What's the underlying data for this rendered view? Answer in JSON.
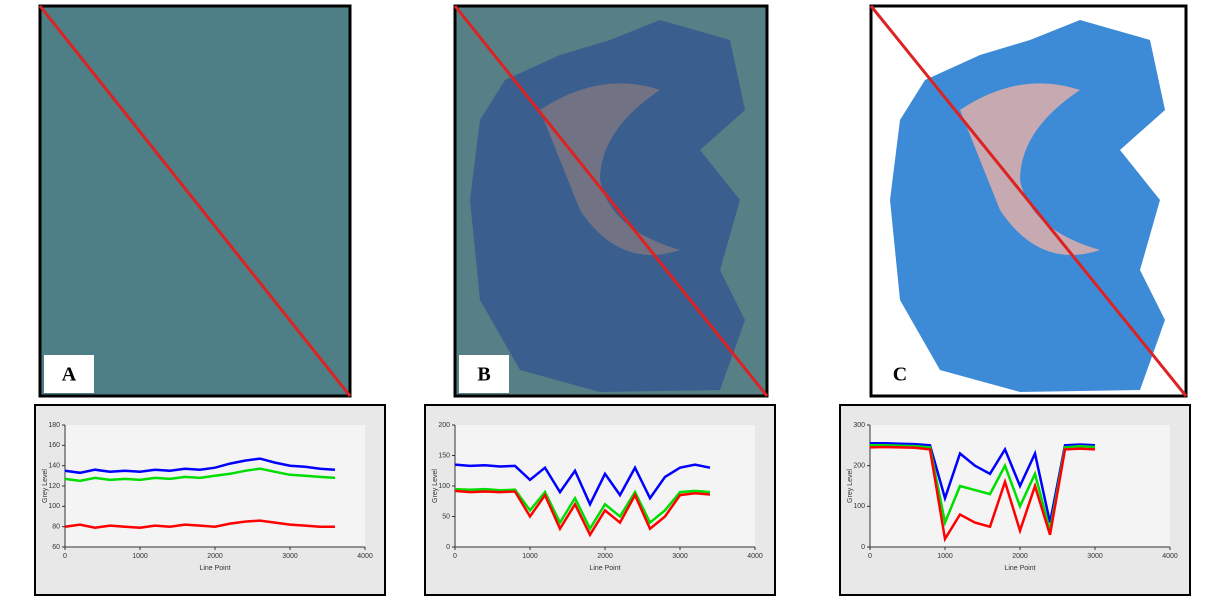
{
  "panels": [
    {
      "label": "A"
    },
    {
      "label": "B"
    },
    {
      "label": "C"
    }
  ],
  "chart_data": [
    {
      "type": "line",
      "x_label": "Line Point",
      "y_label": "Grey Level",
      "x": [
        0,
        200,
        400,
        600,
        800,
        1000,
        1200,
        1400,
        1600,
        1800,
        2000,
        2200,
        2400,
        2600,
        2800,
        3000,
        3200,
        3400,
        3600
      ],
      "xlim": [
        0,
        4000
      ],
      "xticks": [
        0,
        1000,
        2000,
        3000,
        4000
      ],
      "ylim": [
        60,
        180
      ],
      "yticks": [
        60,
        80,
        100,
        120,
        140,
        160,
        180
      ],
      "series": [
        {
          "color": "#0000ff",
          "values": [
            135,
            133,
            136,
            134,
            135,
            134,
            136,
            135,
            137,
            136,
            138,
            142,
            145,
            147,
            143,
            140,
            139,
            137,
            136
          ]
        },
        {
          "color": "#00dd00",
          "values": [
            127,
            125,
            128,
            126,
            127,
            126,
            128,
            127,
            129,
            128,
            130,
            132,
            135,
            137,
            134,
            131,
            130,
            129,
            128
          ]
        },
        {
          "color": "#ff0000",
          "values": [
            80,
            82,
            79,
            81,
            80,
            79,
            81,
            80,
            82,
            81,
            80,
            83,
            85,
            86,
            84,
            82,
            81,
            80,
            80
          ]
        }
      ]
    },
    {
      "type": "line",
      "x_label": "Line Point",
      "y_label": "Grey Level",
      "x": [
        0,
        200,
        400,
        600,
        800,
        1000,
        1200,
        1400,
        1600,
        1800,
        2000,
        2200,
        2400,
        2600,
        2800,
        3000,
        3200,
        3400
      ],
      "xlim": [
        0,
        4000
      ],
      "xticks": [
        0,
        1000,
        2000,
        3000,
        4000
      ],
      "ylim": [
        0,
        200
      ],
      "yticks": [
        0,
        50,
        100,
        150,
        200
      ],
      "series": [
        {
          "color": "#0000ff",
          "values": [
            135,
            133,
            134,
            132,
            133,
            110,
            130,
            90,
            125,
            70,
            120,
            85,
            130,
            80,
            115,
            130,
            135,
            130
          ]
        },
        {
          "color": "#00dd00",
          "values": [
            95,
            94,
            95,
            93,
            94,
            60,
            90,
            40,
            80,
            30,
            70,
            50,
            90,
            40,
            60,
            90,
            92,
            90
          ]
        },
        {
          "color": "#ff0000",
          "values": [
            92,
            90,
            91,
            90,
            91,
            50,
            85,
            30,
            70,
            20,
            60,
            40,
            85,
            30,
            50,
            85,
            88,
            86
          ]
        }
      ]
    },
    {
      "type": "line",
      "x_label": "Line Point",
      "y_label": "Grey Level",
      "x": [
        0,
        200,
        400,
        600,
        800,
        1000,
        1200,
        1400,
        1600,
        1800,
        2000,
        2200,
        2400,
        2600,
        2800,
        3000
      ],
      "xlim": [
        0,
        4000
      ],
      "xticks": [
        0,
        1000,
        2000,
        3000,
        4000
      ],
      "ylim": [
        0,
        300
      ],
      "yticks": [
        0,
        100,
        200,
        300
      ],
      "series": [
        {
          "color": "#0000ff",
          "values": [
            255,
            255,
            254,
            253,
            250,
            120,
            230,
            200,
            180,
            240,
            150,
            230,
            60,
            250,
            252,
            250
          ]
        },
        {
          "color": "#00dd00",
          "values": [
            250,
            250,
            249,
            248,
            245,
            60,
            150,
            140,
            130,
            200,
            100,
            180,
            40,
            245,
            248,
            246
          ]
        },
        {
          "color": "#ff0000",
          "values": [
            245,
            246,
            245,
            244,
            240,
            20,
            80,
            60,
            50,
            160,
            40,
            150,
            30,
            240,
            242,
            240
          ]
        }
      ]
    }
  ]
}
